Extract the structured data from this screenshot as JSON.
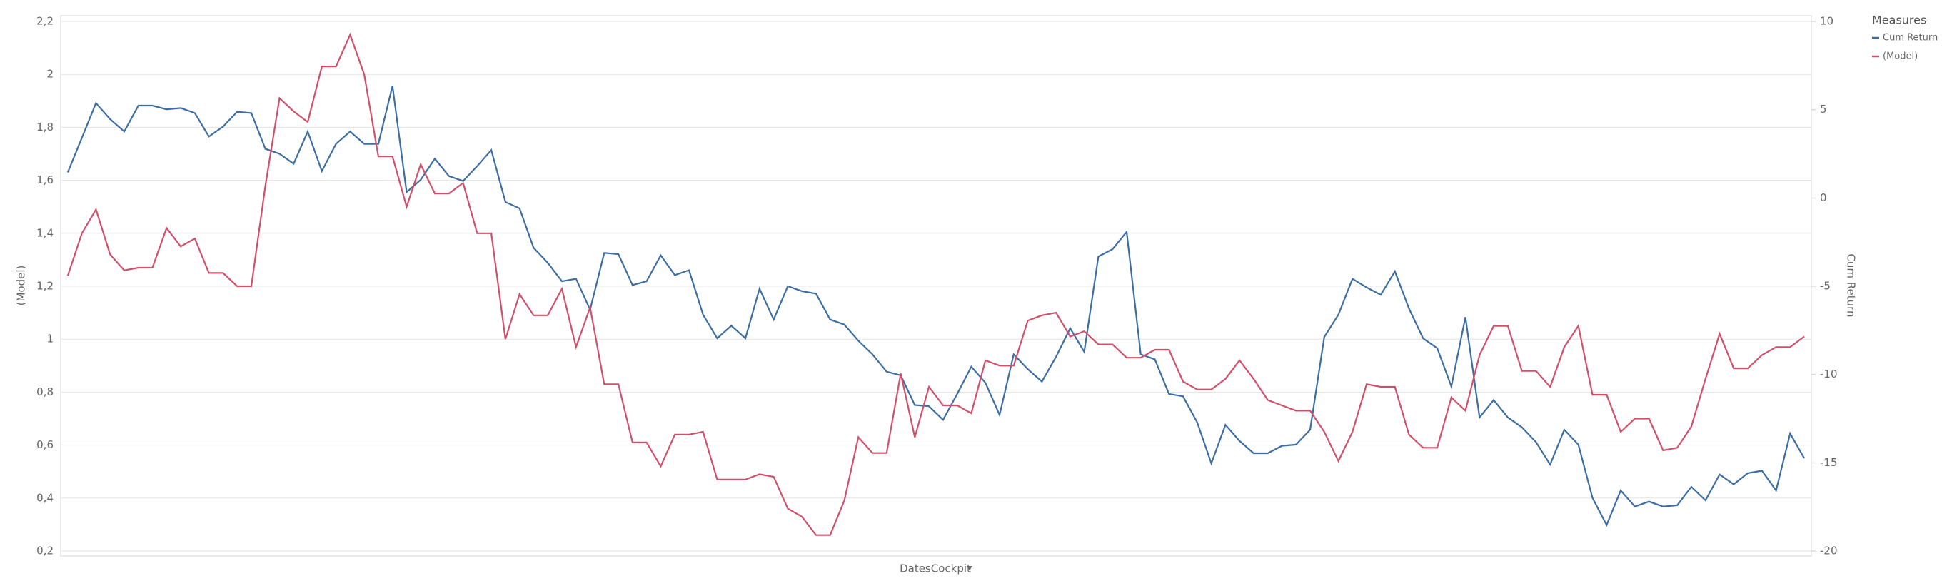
{
  "chart_data": {
    "type": "line",
    "xlabel": "DatesCockpit",
    "ylabel": "(Model)",
    "y2label": "Cum Return",
    "legend_title": "Measures",
    "legend": "right",
    "grid": true,
    "categories": [
      null,
      null,
      null,
      null,
      null,
      null,
      null,
      null,
      null,
      null,
      null,
      null,
      null,
      null,
      null,
      null,
      null,
      null,
      null,
      null,
      null,
      null,
      null,
      null,
      null,
      null,
      null,
      null,
      null,
      null,
      null,
      null,
      null,
      null,
      null,
      null,
      null,
      null,
      null,
      null,
      null,
      null,
      null,
      null,
      null,
      null,
      null,
      null,
      null,
      null,
      null,
      null,
      null,
      null,
      null,
      null,
      null,
      null,
      null,
      null,
      null,
      null,
      null,
      null,
      null,
      null,
      null,
      null,
      null,
      null,
      null,
      null,
      null,
      null,
      null,
      null,
      null,
      null,
      null,
      null,
      null,
      null,
      null,
      null,
      null,
      null,
      null,
      null,
      null,
      null,
      null,
      null,
      null,
      null,
      null,
      null,
      null,
      null,
      null,
      null,
      null,
      null,
      null,
      null,
      null,
      null,
      null,
      null,
      null,
      null,
      null,
      null,
      null,
      null,
      null,
      null,
      null,
      null,
      null,
      null,
      null,
      null,
      null,
      null
    ],
    "ylim": [
      0.2,
      2.2
    ],
    "yticks": [
      {
        "value": 0.2,
        "label": "0,2"
      },
      {
        "value": 0.4,
        "label": "0,4"
      },
      {
        "value": 0.6,
        "label": "0,6"
      },
      {
        "value": 0.8,
        "label": "0,8"
      },
      1,
      {
        "value": 1.2,
        "label": "1,2"
      },
      {
        "value": 1.4,
        "label": "1,4"
      },
      {
        "value": 1.6,
        "label": "1,6"
      },
      {
        "value": 1.8,
        "label": "1,8"
      },
      2,
      {
        "value": 2.2,
        "label": "2,2"
      }
    ],
    "y2lim": [
      -20,
      10
    ],
    "y2ticks": [
      -20,
      -15,
      -10,
      -5,
      0,
      5,
      10
    ],
    "series": [
      {
        "name": "Cum Return",
        "color": "#3d6ea3",
        "axis": "y2",
        "values": [
          1.45,
          3.41,
          5.37,
          4.46,
          3.76,
          5.23,
          5.23,
          5.02,
          5.09,
          4.81,
          3.48,
          4.04,
          4.88,
          4.81,
          2.78,
          2.5,
          1.94,
          3.76,
          1.52,
          3.06,
          3.76,
          3.06,
          3.06,
          6.35,
          0.33,
          1.03,
          2.22,
          1.24,
          0.96,
          1.8,
          2.71,
          -0.23,
          -0.59,
          -2.83,
          -3.67,
          -4.72,
          -4.58,
          -6.33,
          -3.11,
          -3.18,
          -4.93,
          -4.72,
          -3.25,
          -4.37,
          -4.09,
          -6.61,
          -7.95,
          -7.24,
          -7.95,
          -5.14,
          -6.89,
          -5.0,
          -5.28,
          -5.42,
          -6.89,
          -7.17,
          -8.09,
          -8.86,
          -9.84,
          -10.05,
          -11.73,
          -11.8,
          -12.57,
          -11.1,
          -9.56,
          -10.47,
          -12.29,
          -8.86,
          -9.7,
          -10.4,
          -9.0,
          -7.38,
          -8.72,
          -3.32,
          -2.9,
          -1.92,
          -8.86,
          -9.14,
          -11.1,
          -11.24,
          -12.71,
          -15.03,
          -12.85,
          -13.76,
          -14.46,
          -14.46,
          -14.04,
          -13.97,
          -13.13,
          -7.88,
          -6.61,
          -4.58,
          -5.07,
          -5.49,
          -4.16,
          -6.26,
          -7.95,
          -8.51,
          -10.68,
          -6.75,
          -12.43,
          -11.45,
          -12.43,
          -12.99,
          -13.83,
          -15.1,
          -13.13,
          -13.97,
          -16.99,
          -18.53,
          -16.57,
          -17.48,
          -17.2,
          -17.48,
          -17.41,
          -16.36,
          -17.13,
          -15.66,
          -16.22,
          -15.59,
          -15.45,
          -16.57,
          -13.34,
          -14.75
        ]
      },
      {
        "name": "(Model)",
        "color": "#d0506b",
        "axis": "y",
        "values": [
          1.24,
          1.4,
          1.49,
          1.32,
          1.26,
          1.27,
          1.27,
          1.42,
          1.35,
          1.38,
          1.25,
          1.25,
          1.2,
          1.2,
          1.58,
          1.91,
          1.86,
          1.82,
          2.03,
          2.03,
          2.15,
          2.0,
          1.69,
          1.69,
          1.5,
          1.66,
          1.55,
          1.55,
          1.59,
          1.4,
          1.4,
          1.0,
          1.17,
          1.09,
          1.09,
          1.19,
          0.97,
          1.12,
          0.83,
          0.83,
          0.61,
          0.61,
          0.52,
          0.64,
          0.64,
          0.65,
          0.47,
          0.47,
          0.47,
          0.49,
          0.48,
          0.36,
          0.33,
          0.26,
          0.26,
          0.39,
          0.63,
          0.57,
          0.57,
          0.87,
          0.63,
          0.82,
          0.75,
          0.75,
          0.72,
          0.92,
          0.9,
          0.9,
          1.07,
          1.09,
          1.1,
          1.01,
          1.03,
          0.98,
          0.98,
          0.93,
          0.93,
          0.96,
          0.96,
          0.84,
          0.81,
          0.81,
          0.85,
          0.92,
          0.85,
          0.77,
          0.75,
          0.73,
          0.73,
          0.65,
          0.54,
          0.65,
          0.83,
          0.82,
          0.82,
          0.64,
          0.59,
          0.59,
          0.78,
          0.73,
          0.94,
          1.05,
          1.05,
          0.88,
          0.88,
          0.82,
          0.97,
          1.05,
          0.79,
          0.79,
          0.65,
          0.7,
          0.7,
          0.58,
          0.59,
          0.67,
          0.85,
          1.02,
          0.89,
          0.89,
          0.94,
          0.97,
          0.97,
          1.01
        ]
      }
    ]
  }
}
